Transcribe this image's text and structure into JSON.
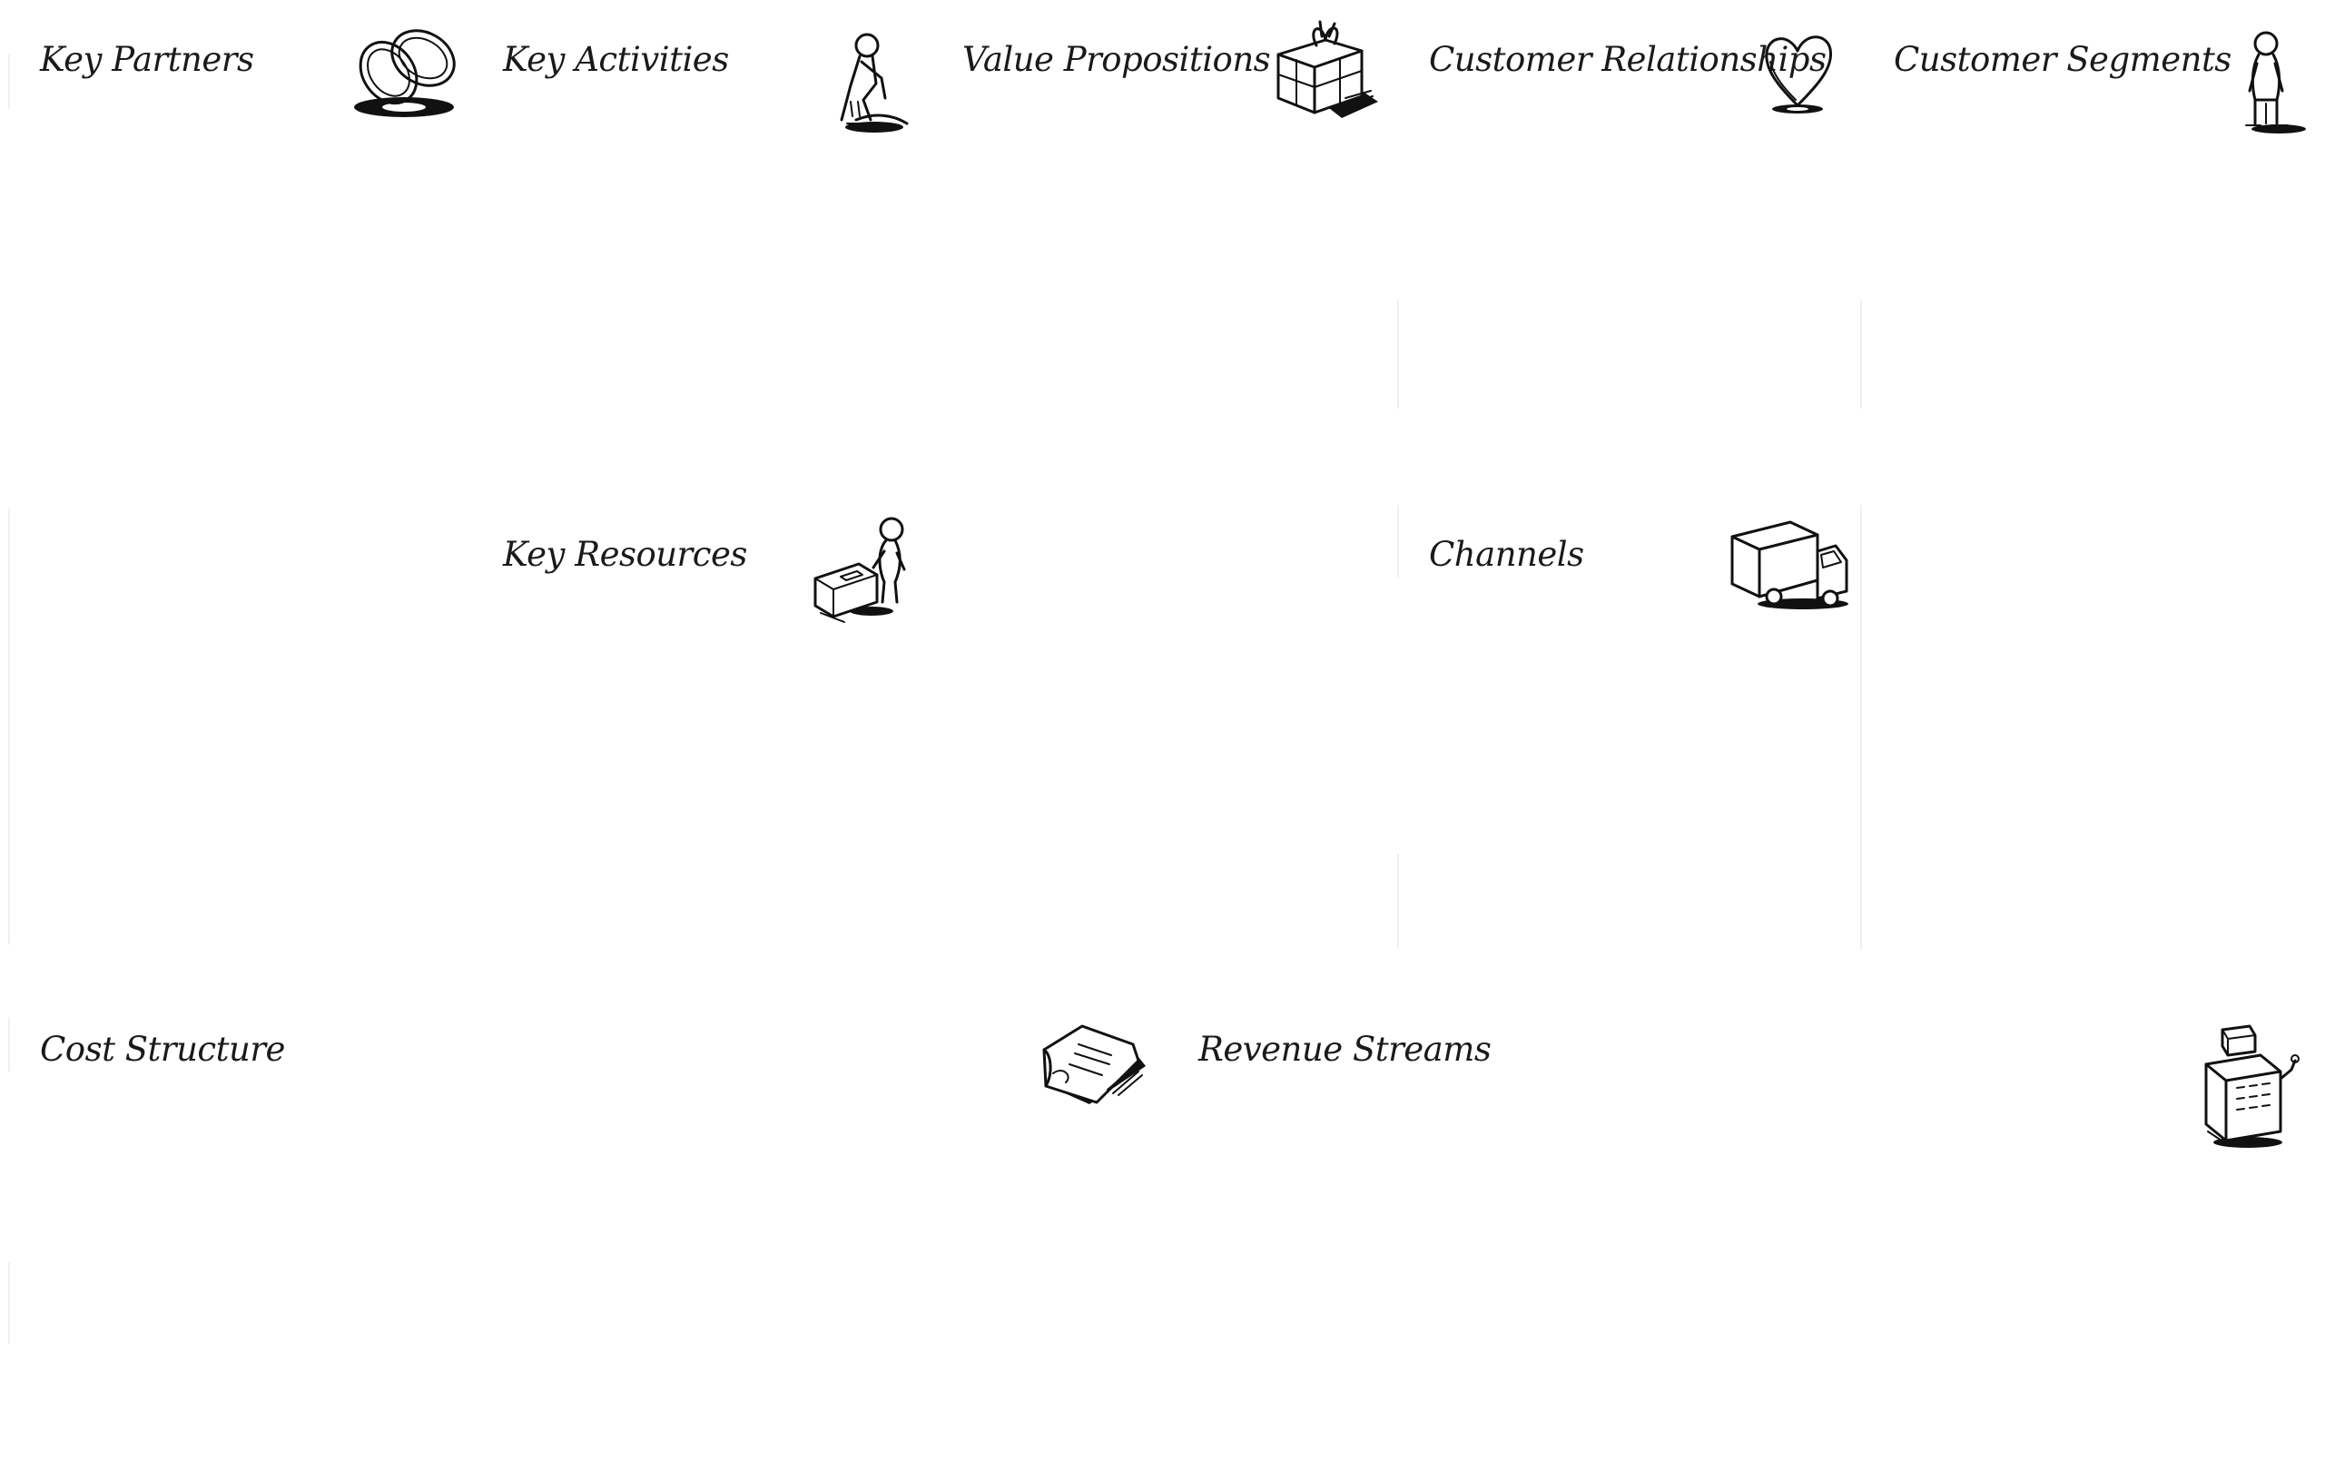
{
  "canvas": {
    "key_partners": {
      "title": "Key Partners",
      "icon": "chain-links-icon"
    },
    "key_activities": {
      "title": "Key Activities",
      "icon": "kneeling-worker-icon"
    },
    "key_resources": {
      "title": "Key Resources",
      "icon": "worker-with-box-icon"
    },
    "value_propositions": {
      "title": "Value Propositions",
      "icon": "gift-box-icon"
    },
    "customer_relationships": {
      "title": "Customer Relationships",
      "icon": "heart-icon"
    },
    "channels": {
      "title": "Channels",
      "icon": "delivery-truck-icon"
    },
    "customer_segments": {
      "title": "Customer Segments",
      "icon": "standing-person-icon"
    },
    "cost_structure": {
      "title": "Cost Structure",
      "icon": "price-tag-icon"
    },
    "revenue_streams": {
      "title": "Revenue Streams",
      "icon": "cash-register-icon"
    }
  }
}
